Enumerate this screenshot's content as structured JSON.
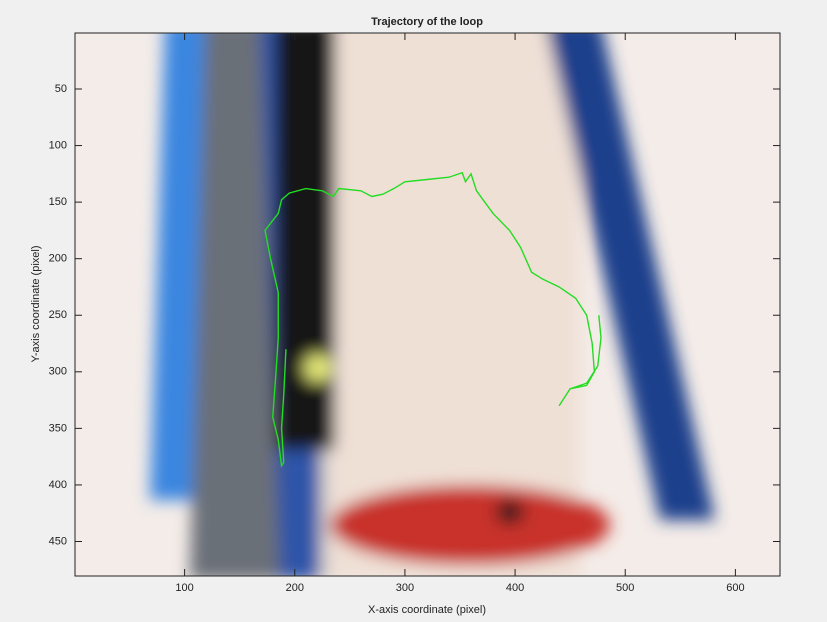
{
  "chart_data": {
    "type": "line",
    "title": "Trajectory of the loop",
    "x_label": "X-axis coordinate (pixel)",
    "y_label": "Y-axis coordinate (pixel)",
    "x": [
      192,
      190,
      188,
      190,
      188,
      185,
      180,
      183,
      185,
      185,
      178,
      173,
      185,
      188,
      195,
      210,
      225,
      235,
      240,
      260,
      270,
      280,
      290,
      300,
      320,
      340,
      352,
      355,
      360,
      365,
      380,
      395,
      405,
      415,
      425,
      440,
      455,
      465,
      470,
      472,
      465,
      450,
      440,
      450,
      465,
      475,
      478,
      476
    ],
    "y": [
      280,
      320,
      350,
      380,
      383,
      360,
      340,
      300,
      270,
      230,
      200,
      175,
      160,
      148,
      142,
      138,
      140,
      145,
      138,
      140,
      145,
      143,
      138,
      132,
      130,
      128,
      124,
      132,
      125,
      140,
      160,
      175,
      190,
      212,
      218,
      225,
      235,
      250,
      275,
      300,
      312,
      315,
      330,
      315,
      310,
      295,
      270,
      250
    ],
    "color": "#22dd22",
    "xlim": [
      0.5,
      640.5
    ],
    "ylim": [
      0.5,
      480.5
    ],
    "y_direction": "reverse",
    "xticks": [
      100,
      200,
      300,
      400,
      500,
      600
    ],
    "yticks": [
      50,
      100,
      150,
      200,
      250,
      300,
      350,
      400,
      450
    ]
  }
}
